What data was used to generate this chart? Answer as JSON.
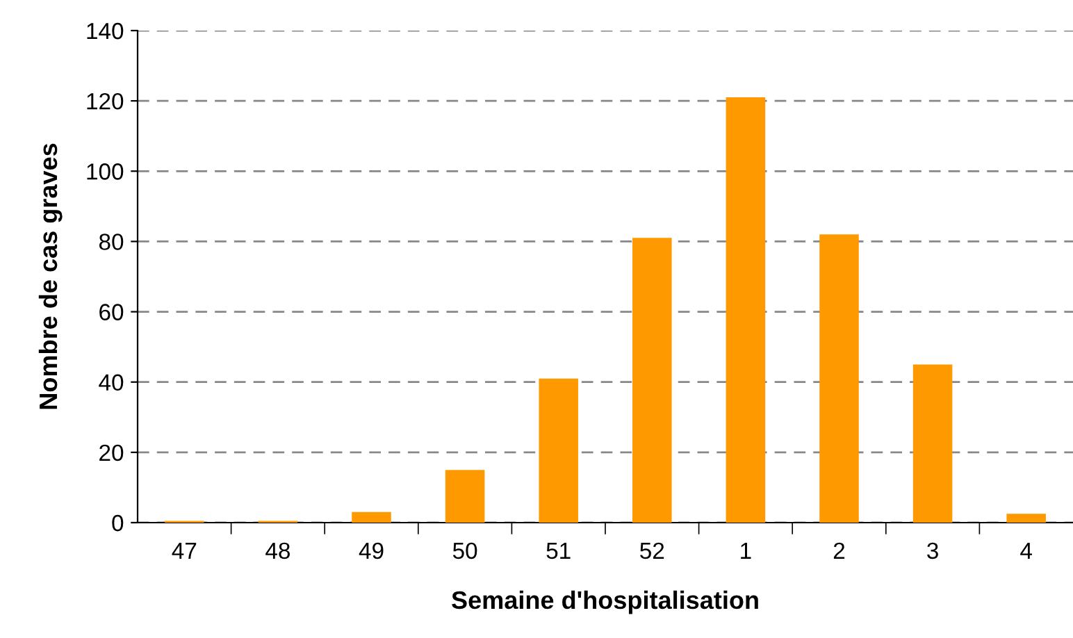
{
  "chart_data": {
    "type": "bar",
    "xlabel": "Semaine d'hospitalisation",
    "ylabel": "Nombre de cas graves",
    "categories": [
      "47",
      "48",
      "49",
      "50",
      "51",
      "52",
      "1",
      "2",
      "3",
      "4"
    ],
    "values": [
      0.5,
      0.5,
      3,
      15,
      41,
      81,
      121,
      82,
      45,
      2.5
    ],
    "color": "#ff9900",
    "ylim": [
      0,
      140
    ],
    "yticks": [
      0,
      20,
      40,
      60,
      80,
      100,
      120,
      140
    ],
    "grid": "y"
  }
}
